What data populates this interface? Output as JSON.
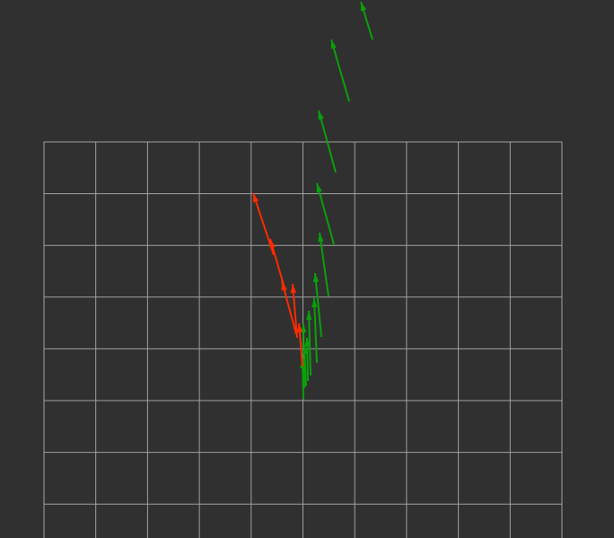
{
  "viewer": {
    "background_color": "#303030",
    "grid": {
      "color": "#a0a0a0",
      "cells_x": 10,
      "cells_y_visible": 7.5
    },
    "arrow_sets": [
      {
        "name": "red-arrows",
        "color": "#ff2a00",
        "count": 5
      },
      {
        "name": "green-arrows",
        "color": "#0aa00a",
        "count": 12
      }
    ]
  }
}
